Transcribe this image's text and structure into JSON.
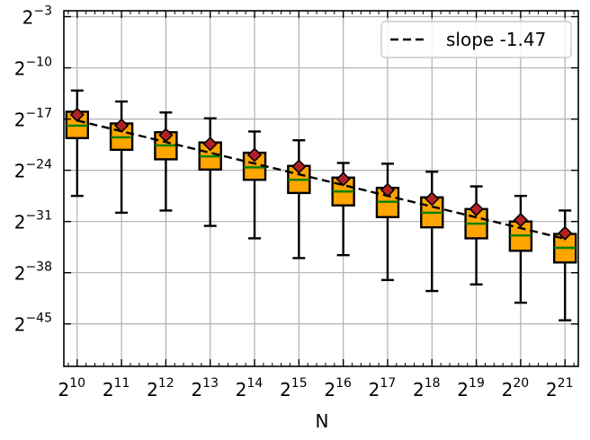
{
  "chart_data": {
    "type": "box",
    "title": "",
    "xlabel": "N",
    "ylabel": "",
    "x_scale": "log2",
    "y_scale": "log2",
    "x_ticks": [
      {
        "base": "2",
        "exp": "10"
      },
      {
        "base": "2",
        "exp": "11"
      },
      {
        "base": "2",
        "exp": "12"
      },
      {
        "base": "2",
        "exp": "13"
      },
      {
        "base": "2",
        "exp": "14"
      },
      {
        "base": "2",
        "exp": "15"
      },
      {
        "base": "2",
        "exp": "16"
      },
      {
        "base": "2",
        "exp": "17"
      },
      {
        "base": "2",
        "exp": "18"
      },
      {
        "base": "2",
        "exp": "19"
      },
      {
        "base": "2",
        "exp": "20"
      },
      {
        "base": "2",
        "exp": "21"
      }
    ],
    "y_ticks": [
      {
        "base": "2",
        "exp": "−3",
        "value": -3
      },
      {
        "base": "2",
        "exp": "−10",
        "value": -10
      },
      {
        "base": "2",
        "exp": "−17",
        "value": -17
      },
      {
        "base": "2",
        "exp": "−24",
        "value": -24
      },
      {
        "base": "2",
        "exp": "−31",
        "value": -31
      },
      {
        "base": "2",
        "exp": "−38",
        "value": -38
      },
      {
        "base": "2",
        "exp": "−45",
        "value": -45
      }
    ],
    "ylim_log2": [
      -50.8,
      -2.2
    ],
    "xlim_log2": [
      9.7,
      21.3
    ],
    "grid": true,
    "legend_position": "top-right",
    "boxes": [
      {
        "x_log2": 10,
        "whisker_low": -27.5,
        "q1": -19.6,
        "median": -17.9,
        "q3": -16.0,
        "whisker_high": -13.1,
        "mean": -16.4
      },
      {
        "x_log2": 11,
        "whisker_low": -29.8,
        "q1": -21.2,
        "median": -19.5,
        "q3": -17.6,
        "whisker_high": -14.6,
        "mean": -17.9
      },
      {
        "x_log2": 12,
        "whisker_low": -29.5,
        "q1": -22.5,
        "median": -20.6,
        "q3": -18.8,
        "whisker_high": -16.1,
        "mean": -19.2
      },
      {
        "x_log2": 13,
        "whisker_low": -31.6,
        "q1": -23.9,
        "median": -22.1,
        "q3": -20.2,
        "whisker_high": -16.9,
        "mean": -20.4
      },
      {
        "x_log2": 14,
        "whisker_low": -33.3,
        "q1": -25.3,
        "median": -23.6,
        "q3": -21.6,
        "whisker_high": -18.7,
        "mean": -21.9
      },
      {
        "x_log2": 15,
        "whisker_low": -36.0,
        "q1": -27.1,
        "median": -25.3,
        "q3": -23.4,
        "whisker_high": -19.9,
        "mean": -23.5
      },
      {
        "x_log2": 16,
        "whisker_low": -35.6,
        "q1": -28.8,
        "median": -26.9,
        "q3": -25.0,
        "whisker_high": -23.0,
        "mean": -25.2
      },
      {
        "x_log2": 17,
        "whisker_low": -39.0,
        "q1": -30.4,
        "median": -28.3,
        "q3": -26.4,
        "whisker_high": -23.1,
        "mean": -26.7
      },
      {
        "x_log2": 18,
        "whisker_low": -40.5,
        "q1": -31.8,
        "median": -29.8,
        "q3": -27.7,
        "whisker_high": -24.2,
        "mean": -27.9
      },
      {
        "x_log2": 19,
        "whisker_low": -39.6,
        "q1": -33.3,
        "median": -31.3,
        "q3": -29.3,
        "whisker_high": -26.2,
        "mean": -29.3
      },
      {
        "x_log2": 20,
        "whisker_low": -42.1,
        "q1": -35.0,
        "median": -32.9,
        "q3": -31.0,
        "whisker_high": -27.5,
        "mean": -30.8
      },
      {
        "x_log2": 21,
        "whisker_low": -44.5,
        "q1": -36.6,
        "median": -34.6,
        "q3": -32.7,
        "whisker_high": -29.5,
        "mean": -32.6
      }
    ],
    "fit_line": {
      "slope": -1.47,
      "intercept": -2.5
    },
    "legend": [
      {
        "label": "slope -1.47",
        "style": "dashed",
        "color": "#000000"
      }
    ],
    "colors": {
      "box_fill": "#FFA500",
      "box_edge": "#000000",
      "median": "#008000",
      "mean_marker": "#B22222",
      "grid": "#B0B0B0",
      "fit_line": "#000000"
    }
  }
}
